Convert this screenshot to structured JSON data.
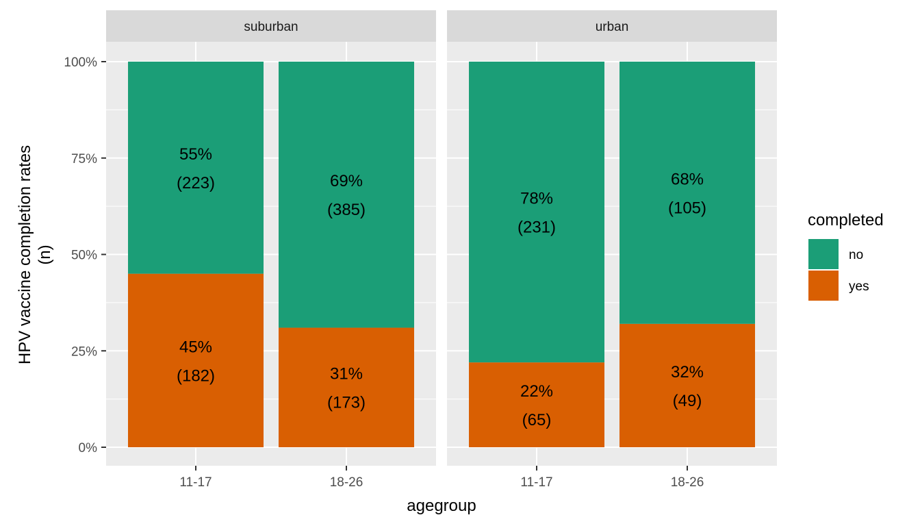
{
  "chart_data": {
    "type": "bar",
    "stacked": true,
    "position": "fill",
    "facet_by": "",
    "facets": [
      "suburban",
      "urban"
    ],
    "categories": [
      "11-17",
      "18-26"
    ],
    "xlabel": "agegroup",
    "ylabel": [
      "HPV vaccine completion rates",
      "(n)"
    ],
    "ylim": [
      0,
      1
    ],
    "yticks": [
      0,
      0.25,
      0.5,
      0.75,
      1
    ],
    "ytick_labels": [
      "0%",
      "25%",
      "50%",
      "75%",
      "100%"
    ],
    "grid": true,
    "legend": {
      "title": "completed",
      "placement": "right",
      "entries": [
        {
          "name": "no",
          "color": "#1B9E77"
        },
        {
          "name": "yes",
          "color": "#D95F02"
        }
      ]
    },
    "panels": [
      {
        "facet": "suburban",
        "bars": [
          {
            "category": "11-17",
            "segments": [
              {
                "series": "no",
                "value": 0.55,
                "pct_label": "55%",
                "n_label": "(223)"
              },
              {
                "series": "yes",
                "value": 0.45,
                "pct_label": "45%",
                "n_label": "(182)"
              }
            ]
          },
          {
            "category": "18-26",
            "segments": [
              {
                "series": "no",
                "value": 0.69,
                "pct_label": "69%",
                "n_label": "(385)"
              },
              {
                "series": "yes",
                "value": 0.31,
                "pct_label": "31%",
                "n_label": "(173)"
              }
            ]
          }
        ]
      },
      {
        "facet": "urban",
        "bars": [
          {
            "category": "11-17",
            "segments": [
              {
                "series": "no",
                "value": 0.78,
                "pct_label": "78%",
                "n_label": "(231)"
              },
              {
                "series": "yes",
                "value": 0.22,
                "pct_label": "22%",
                "n_label": "(65)"
              }
            ]
          },
          {
            "category": "18-26",
            "segments": [
              {
                "series": "no",
                "value": 0.68,
                "pct_label": "68%",
                "n_label": "(105)"
              },
              {
                "series": "yes",
                "value": 0.32,
                "pct_label": "32%",
                "n_label": "(49)"
              }
            ]
          }
        ]
      }
    ]
  }
}
